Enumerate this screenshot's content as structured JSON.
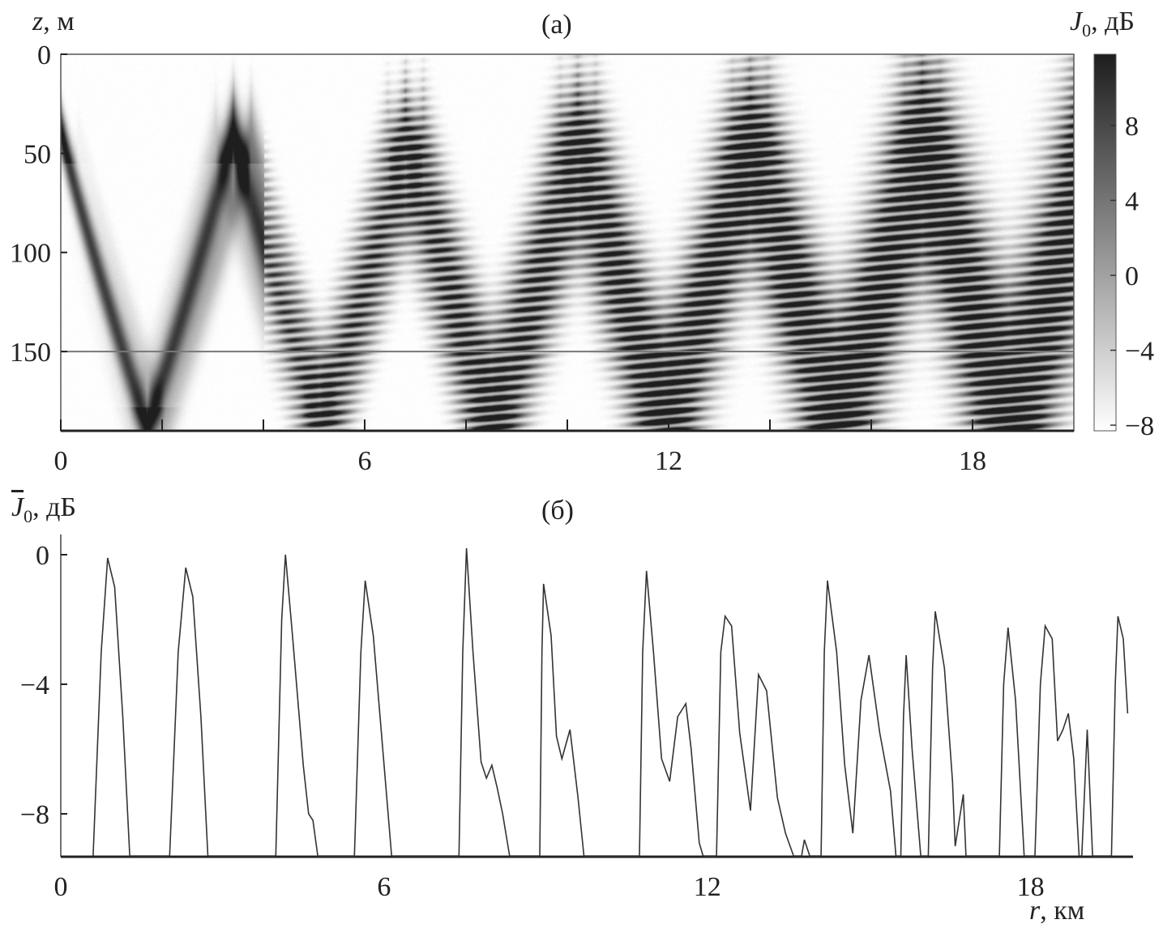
{
  "chart_data": [
    {
      "panel_label": "(а)",
      "type": "heatmap",
      "ylabel": {
        "var": "z",
        "unit": ", м"
      },
      "colorbar_label": {
        "var": "J",
        "sub": "0",
        "unit": ", дБ"
      },
      "xlim": [
        0,
        20
      ],
      "ylim": [
        190,
        0
      ],
      "yticks": [
        0,
        50,
        100,
        150
      ],
      "xticks": [
        0,
        6,
        12,
        18
      ],
      "xminor_ticks": [
        2,
        4,
        8,
        10,
        14,
        16
      ],
      "colorbar_range": [
        -8.3,
        11.8
      ],
      "colorbar_ticks": [
        8,
        4,
        0,
        -4,
        -8
      ],
      "colormap": "white-to-black grayscale",
      "reference_line_z": 150,
      "description_of_field": "ray beams oscillating between ~40 m and bottom (~190 m); upper turning points near r = 0, 3.4, 6.8, 10.2, 13.6, 17.0 км; bottom reflections near r = 1.8, 5.1, 8.5, 11.8, 15.1, 18.5 км"
    },
    {
      "panel_label": "(б)",
      "type": "line",
      "ylabel": {
        "var": "J",
        "sub": "0",
        "unit": ", дБ",
        "overbar": true
      },
      "xlabel": {
        "var": "r",
        "unit": ", км"
      },
      "xlim": [
        0,
        19.9
      ],
      "ylim": [
        -9.3,
        0.4
      ],
      "xticks": [
        0,
        6,
        12,
        18
      ],
      "yticks": [
        0,
        -4,
        -8
      ],
      "line_color": "#333333",
      "x": [
        0.6,
        0.75,
        0.87,
        1.0,
        1.15,
        1.28,
        2.02,
        2.18,
        2.32,
        2.45,
        2.6,
        2.73,
        3.99,
        4.1,
        4.17,
        4.3,
        4.5,
        4.6,
        4.68,
        4.77,
        5.45,
        5.57,
        5.65,
        5.8,
        5.95,
        6.14,
        7.39,
        7.46,
        7.53,
        7.65,
        7.8,
        7.9,
        8.0,
        8.1,
        8.2,
        8.33,
        8.89,
        8.93,
        8.96,
        9.1,
        9.2,
        9.3,
        9.45,
        9.6,
        9.71,
        10.74,
        10.8,
        10.87,
        11.0,
        11.15,
        11.3,
        11.45,
        11.6,
        11.7,
        11.85,
        11.92,
        12.17,
        12.25,
        12.33,
        12.45,
        12.6,
        12.8,
        12.95,
        13.1,
        13.3,
        13.45,
        13.6,
        13.75,
        13.8,
        13.9,
        14.11,
        14.17,
        14.23,
        14.4,
        14.55,
        14.7,
        14.85,
        15.0,
        15.2,
        15.4,
        15.5,
        15.59,
        15.64,
        15.69,
        15.8,
        15.96,
        16.1,
        16.18,
        16.23,
        16.4,
        16.55,
        16.6,
        16.75,
        16.8,
        16.9,
        17.0,
        17.42,
        17.5,
        17.58,
        17.72,
        17.88,
        18.08,
        18.18,
        18.27,
        18.4,
        18.5,
        18.6,
        18.7,
        18.8,
        18.9,
        18.95,
        19.05,
        19.15,
        19.25,
        19.5,
        19.57,
        19.62,
        19.72,
        19.8
      ],
      "y": [
        -9.3,
        -3,
        -0.1,
        -1,
        -5,
        -9.3,
        -9.3,
        -3,
        -0.4,
        -1.3,
        -5,
        -9.3,
        -9.3,
        -2,
        0,
        -2.5,
        -6.5,
        -8,
        -8.2,
        -9.3,
        -9.3,
        -3,
        -0.8,
        -2.5,
        -5.5,
        -9.3,
        -9.3,
        -3,
        0.2,
        -3,
        -6.4,
        -6.9,
        -6.5,
        -7.2,
        -8,
        -9.3,
        -9.3,
        -3,
        -0.9,
        -2.5,
        -5.6,
        -6.3,
        -5.4,
        -7.5,
        -9.3,
        -9.3,
        -3,
        -0.5,
        -3,
        -6.3,
        -7.0,
        -5.0,
        -4.6,
        -6.0,
        -8.9,
        -9.3,
        -9.3,
        -3,
        -1.9,
        -2.2,
        -5.5,
        -7.9,
        -3.7,
        -4.2,
        -7.5,
        -8.6,
        -9.3,
        -9.3,
        -8.8,
        -9.3,
        -9.3,
        -3,
        -0.8,
        -3,
        -6.5,
        -8.6,
        -4.5,
        -3.1,
        -5.5,
        -7.3,
        -9.3,
        -9.3,
        -5,
        -3.1,
        -6,
        -9.3,
        -9.3,
        -3.5,
        -1.75,
        -3.5,
        -7,
        -9,
        -7.4,
        -9.3,
        -9.3,
        -9.3,
        -9.3,
        -4,
        -2.25,
        -4.5,
        -9.3,
        -9.3,
        -4,
        -2.2,
        -2.6,
        -5.75,
        -5.4,
        -4.9,
        -6.3,
        -9.3,
        -9.3,
        -5.4,
        -9.3,
        -9.3,
        -9.3,
        -4,
        -1.9,
        -2.6,
        -4.9
      ]
    }
  ]
}
